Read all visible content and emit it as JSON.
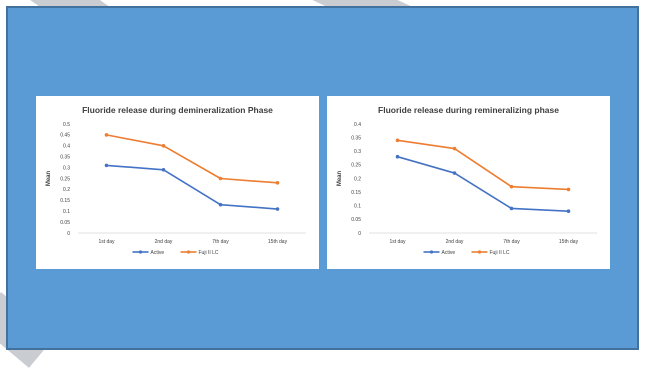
{
  "colors": {
    "slide_background": "#5b9bd5",
    "slide_border": "#41719c",
    "series_active": "#4472c4",
    "series_fuji": "#ed7d31"
  },
  "chart_data": [
    {
      "type": "line",
      "title": "Fluoride release during demineralization Phase",
      "xlabel": "",
      "ylabel": "Mean",
      "categories": [
        "1st day",
        "2nd day",
        "7th day",
        "15th day"
      ],
      "ylim": [
        0,
        0.5
      ],
      "yticks": [
        "0",
        "0.05",
        "0.1",
        "0.15",
        "0.2",
        "0.25",
        "0.3",
        "0.35",
        "0.4",
        "0.45",
        "0.5"
      ],
      "grid": false,
      "legend": "bottom",
      "series": [
        {
          "name": "Active",
          "color": "#4472c4",
          "values": [
            0.31,
            0.29,
            0.13,
            0.11
          ]
        },
        {
          "name": "Fuji II LC",
          "color": "#ed7d31",
          "values": [
            0.45,
            0.4,
            0.25,
            0.23
          ]
        }
      ]
    },
    {
      "type": "line",
      "title": "Fluoride release during remineralizing phase",
      "xlabel": "",
      "ylabel": "Mean",
      "categories": [
        "1st day",
        "2nd day",
        "7th day",
        "15th day"
      ],
      "ylim": [
        0,
        0.4
      ],
      "yticks": [
        "0",
        "0.05",
        "0.1",
        "0.15",
        "0.2",
        "0.25",
        "0.3",
        "0.35",
        "0.4"
      ],
      "grid": false,
      "legend": "bottom",
      "series": [
        {
          "name": "Active",
          "color": "#4472c4",
          "values": [
            0.28,
            0.22,
            0.09,
            0.08
          ]
        },
        {
          "name": "Fuji II LC",
          "color": "#ed7d31",
          "values": [
            0.34,
            0.31,
            0.17,
            0.16
          ]
        }
      ]
    }
  ]
}
